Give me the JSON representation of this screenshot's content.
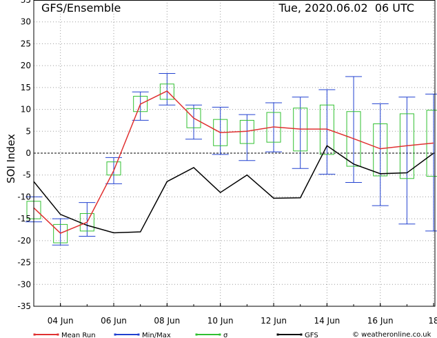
{
  "chart_data": {
    "type": "line",
    "title": "GFS/Ensemble",
    "subtitle": "Tue, 2020.06.02  06 UTC",
    "ylabel": "SOI Index",
    "xlabel": "",
    "ylim": [
      -35,
      35
    ],
    "yticks": [
      -35,
      -30,
      -25,
      -20,
      -15,
      -10,
      -5,
      0,
      5,
      10,
      15,
      20,
      25,
      30,
      35
    ],
    "x_range_days": [
      3,
      18.05
    ],
    "xticks": [
      {
        "day": 4,
        "label": "04 Jun"
      },
      {
        "day": 6,
        "label": "06 Jun"
      },
      {
        "day": 8,
        "label": "08 Jun"
      },
      {
        "day": 10,
        "label": "10 Jun"
      },
      {
        "day": 12,
        "label": "12 Jun"
      },
      {
        "day": 14,
        "label": "14 Jun"
      },
      {
        "day": 16,
        "label": "16 Jun"
      },
      {
        "day": 18,
        "label": "18"
      }
    ],
    "grid": true,
    "x": [
      3,
      4,
      5,
      6,
      7,
      8,
      9,
      10,
      11,
      12,
      13,
      14,
      15,
      16,
      17,
      18
    ],
    "series": [
      {
        "name": "Mean Run",
        "color": "#e03030",
        "values": [
          -12.5,
          -18.3,
          -15.8,
          -4.0,
          11.2,
          14.2,
          8.0,
          4.7,
          5.0,
          6.0,
          5.5,
          5.5,
          3.3,
          1.0,
          1.7,
          2.3
        ]
      },
      {
        "name": "Min/Max",
        "color": "#2040d0",
        "min": [
          -15.7,
          -21.0,
          -19.0,
          -7.0,
          7.5,
          11.0,
          3.2,
          -0.3,
          -1.7,
          0.3,
          -3.5,
          -4.8,
          -6.7,
          -12.0,
          -16.2,
          -17.8
        ],
        "max": [
          -10.0,
          -15.0,
          -11.3,
          -1.0,
          14.0,
          18.2,
          11.0,
          10.5,
          8.8,
          11.5,
          12.8,
          14.5,
          17.5,
          11.3,
          12.8,
          13.5
        ]
      },
      {
        "name": "σ",
        "color": "#30c030",
        "low": [
          -15.0,
          -20.5,
          -17.8,
          -5.0,
          9.5,
          12.3,
          5.8,
          1.7,
          2.2,
          2.5,
          0.5,
          -0.3,
          -3.0,
          -5.2,
          -5.8,
          -5.3
        ],
        "high": [
          -11.0,
          -16.3,
          -13.8,
          -2.0,
          13.0,
          15.8,
          10.2,
          7.7,
          7.5,
          9.3,
          10.3,
          11.0,
          9.5,
          6.7,
          9.0,
          9.8
        ]
      },
      {
        "name": "GFS",
        "color": "#000000",
        "values": [
          -6.5,
          -14.0,
          -16.5,
          -18.2,
          -18.0,
          -6.5,
          -3.3,
          -9.0,
          -5.0,
          -10.3,
          -10.2,
          1.7,
          -2.5,
          -4.7,
          -4.5,
          0.0
        ]
      }
    ],
    "legend_position": "bottom",
    "credit": "© weatheronline.co.uk"
  }
}
